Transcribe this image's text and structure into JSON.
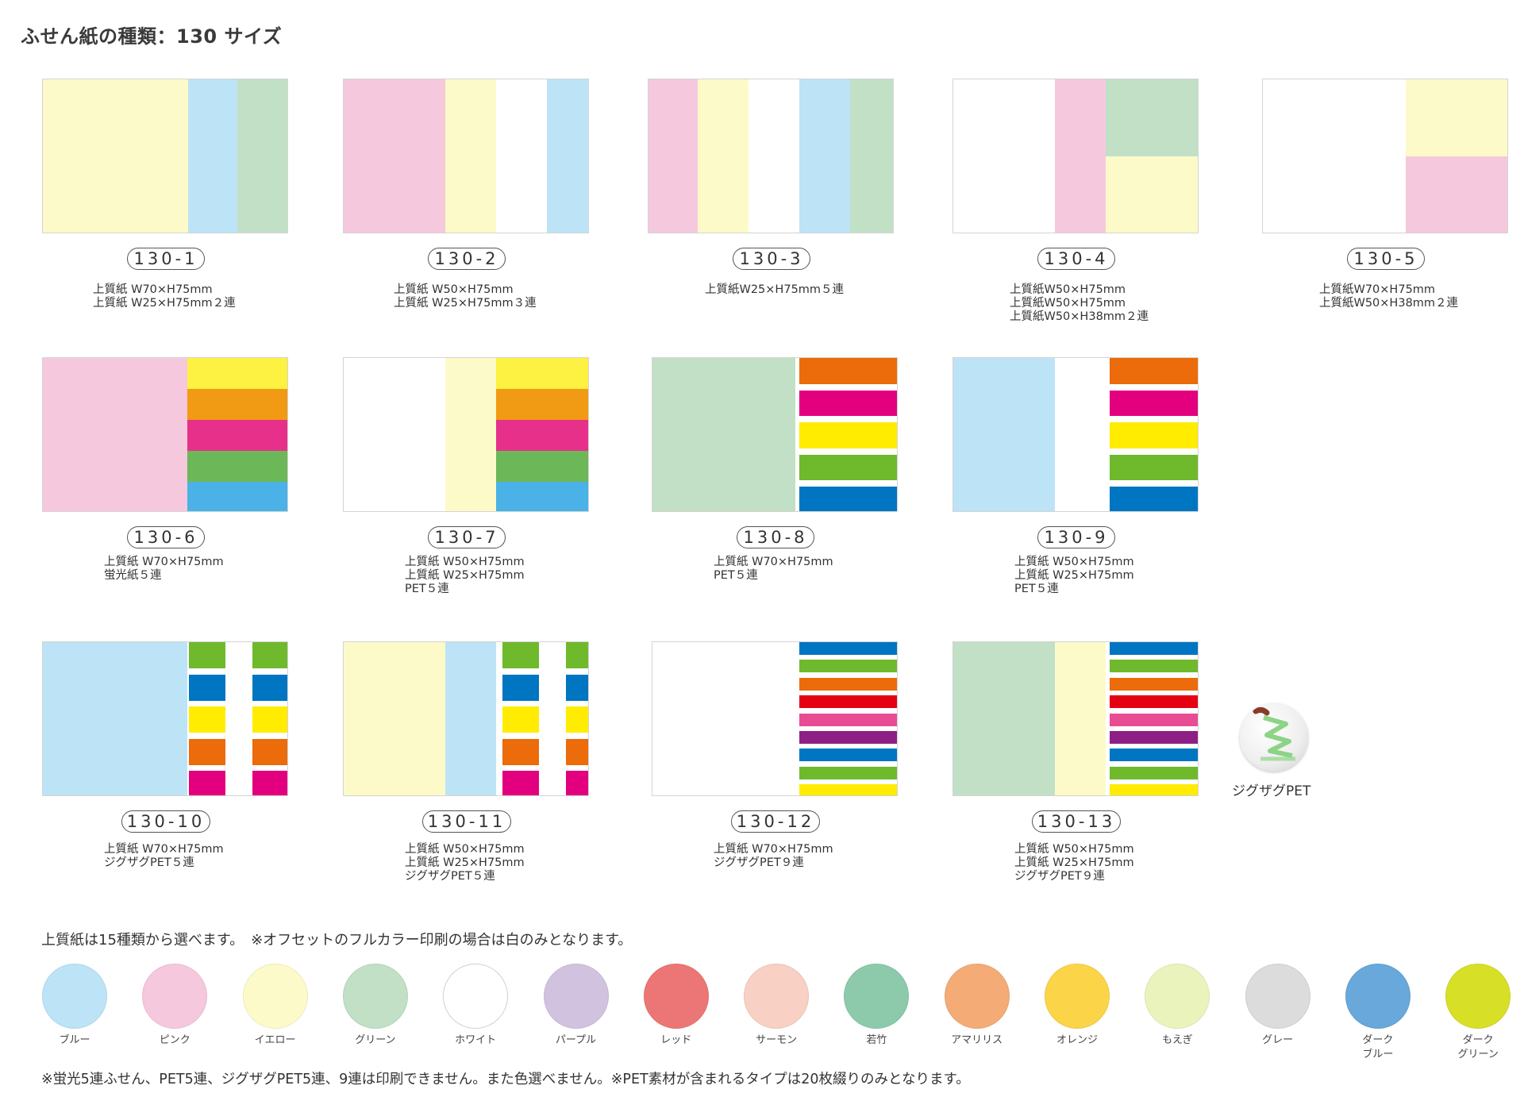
{
  "page_title": "ふせん紙の種類：130 サイズ",
  "products": [
    {
      "code": "130-1",
      "description": "上質紙 W70×H75mm\n上質紙 W25×H75mm２連"
    },
    {
      "code": "130-2",
      "description": "上質紙 W50×H75mm\n上質紙 W25×H75mm３連"
    },
    {
      "code": "130-3",
      "description": "上質紙W25×H75mm５連"
    },
    {
      "code": "130-4",
      "description": "上質紙W50×H75mm\n上質紙W50×H75mm\n上質紙W50×H38mm２連"
    },
    {
      "code": "130-5",
      "description": "上質紙W70×H75mm\n上質紙W50×H38mm２連"
    },
    {
      "code": "130-6",
      "description": "上質紙 W70×H75mm\n蛍光紙５連"
    },
    {
      "code": "130-7",
      "description": "上質紙 W50×H75mm\n上質紙 W25×H75mm\nPET５連"
    },
    {
      "code": "130-8",
      "description": "上質紙 W70×H75mm\nPET５連"
    },
    {
      "code": "130-9",
      "description": "上質紙 W50×H75mm\n上質紙 W25×H75mm\nPET５連"
    },
    {
      "code": "130-10",
      "description": "上質紙 W70×H75mm\nジグザグPET５連"
    },
    {
      "code": "130-11",
      "description": "上質紙 W50×H75mm\n上質紙 W25×H75mm\nジグザグPET５連"
    },
    {
      "code": "130-12",
      "description": "上質紙 W70×H75mm\nジグザグPET９連"
    },
    {
      "code": "130-13",
      "description": "上質紙 W50×H75mm\n上質紙 W25×H75mm\nジグザグPET９連"
    }
  ],
  "zigzag_label": "ジグザグPET",
  "paper_note": "上質紙は15種類から選べます。　※オフセットのフルカラー印刷の場合は白のみとなります。",
  "paper_colors": [
    {
      "name": "ブルー",
      "color": "#bde3f7"
    },
    {
      "name": "ピンク",
      "color": "#f5c8de"
    },
    {
      "name": "イエロー",
      "color": "#fdfac9"
    },
    {
      "name": "グリーン",
      "color": "#c1e0c5"
    },
    {
      "name": "ホワイト",
      "color": "#ffffff"
    },
    {
      "name": "パープル",
      "color": "#d1c3df"
    },
    {
      "name": "レッド",
      "color": "#ec7675"
    },
    {
      "name": "サーモン",
      "color": "#f8d0c4"
    },
    {
      "name": "若竹",
      "color": "#8ccaab"
    },
    {
      "name": "アマリリス",
      "color": "#f4ab76"
    },
    {
      "name": "オレンジ",
      "color": "#fcd448"
    },
    {
      "name": "もえぎ",
      "color": "#ebf3bd"
    },
    {
      "name": "グレー",
      "color": "#dcdcdc"
    },
    {
      "name": "ダーク\nブルー",
      "color": "#68a8da"
    },
    {
      "name": "ダーク\nグリーン",
      "color": "#d8df27"
    }
  ],
  "footer_note": "※蛍光5連ふせん、PET5連、ジグザグPET5連、9連は印刷できません。また色選べません。※PET素材が含まれるタイプは20枚綴りのみとなります。"
}
